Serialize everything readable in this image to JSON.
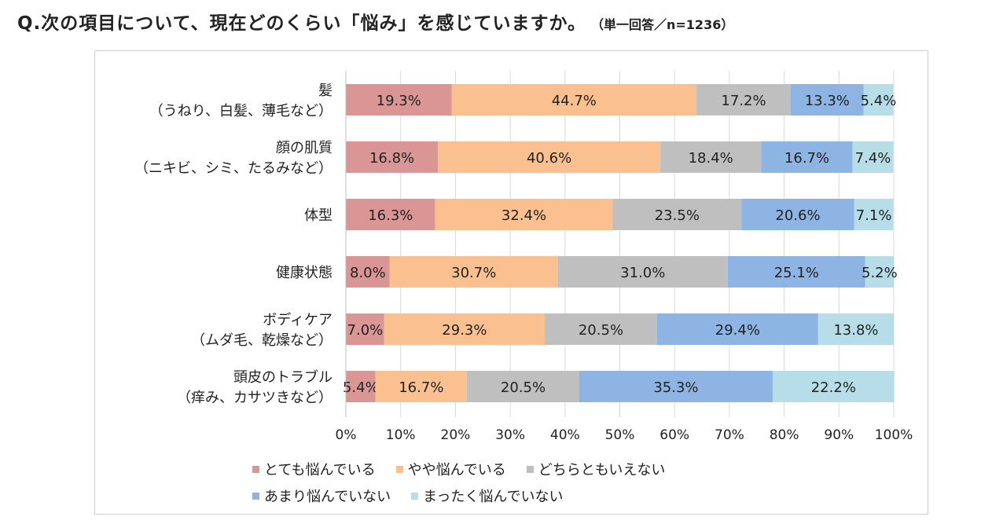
{
  "question": {
    "text": "Q.次の項目について、現在どのくらい「悩み」を感じていますか。",
    "note": "（単一回答／n=1236）"
  },
  "chart_data": {
    "type": "bar",
    "orientation": "horizontal",
    "stacked": true,
    "stack_mode": "percent",
    "categories": [
      [
        "髪",
        "（うねり、白髪、薄毛など）"
      ],
      [
        "顔の肌質",
        "（ニキビ、シミ、たるみなど）"
      ],
      [
        "体型"
      ],
      [
        "健康状態"
      ],
      [
        "ボディケア",
        "（ムダ毛、乾燥など）"
      ],
      [
        "頭皮のトラブル",
        "（痒み、カサツきなど）"
      ]
    ],
    "series": [
      {
        "name": "とても悩んでいる",
        "color": "#DA9694",
        "values": [
          19.3,
          16.8,
          16.3,
          8.0,
          7.0,
          5.4
        ]
      },
      {
        "name": "やや悩んでいる",
        "color": "#FAC090",
        "values": [
          44.7,
          40.6,
          32.4,
          30.7,
          29.3,
          16.7
        ]
      },
      {
        "name": "どちらともいえない",
        "color": "#BFBFBF",
        "values": [
          17.2,
          18.4,
          23.5,
          31.0,
          20.5,
          20.5
        ]
      },
      {
        "name": "あまり悩んでいない",
        "color": "#8DB4E2",
        "values": [
          13.3,
          16.7,
          20.6,
          25.1,
          29.4,
          35.3
        ]
      },
      {
        "name": "まったく悩んでいない",
        "color": "#B7DEE8",
        "values": [
          5.4,
          7.4,
          7.1,
          5.2,
          13.8,
          22.2
        ]
      }
    ],
    "x_ticks": [
      "0%",
      "10%",
      "20%",
      "30%",
      "40%",
      "50%",
      "60%",
      "70%",
      "80%",
      "90%",
      "100%"
    ],
    "xlim": [
      0,
      100
    ],
    "grid": true,
    "legend_position": "bottom"
  }
}
